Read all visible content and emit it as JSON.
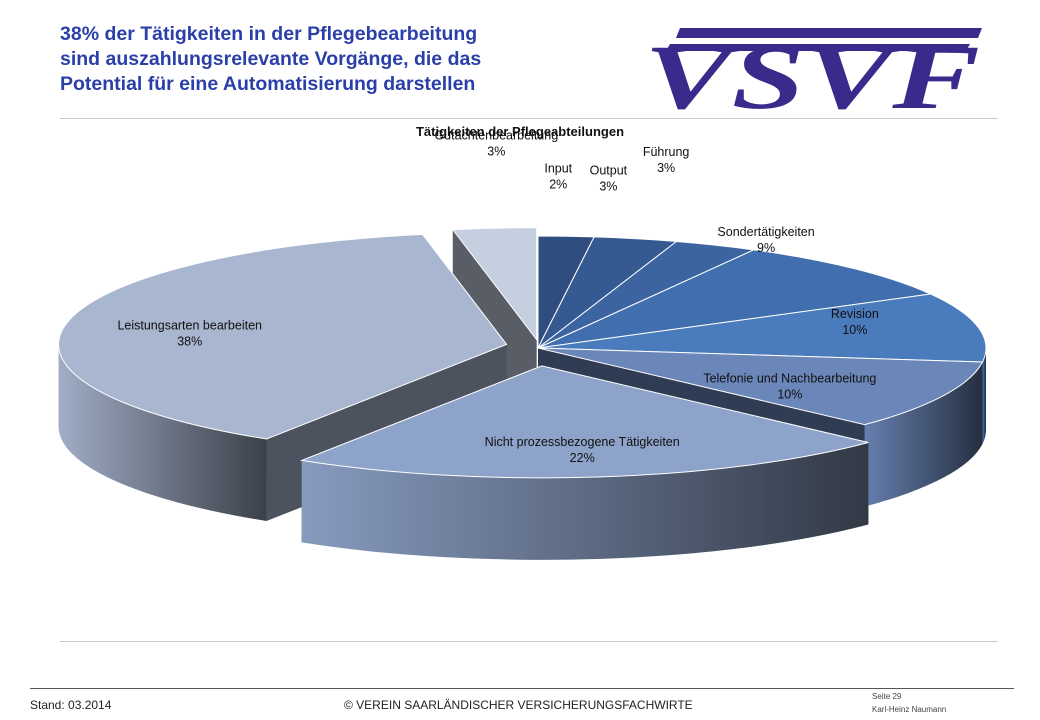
{
  "header": {
    "title_lines": [
      "38% der Tätigkeiten in der Pflegebearbeitung",
      "sind auszahlungsrelevante Vorgänge, die das",
      "Potential für eine Automatisierung darstellen"
    ],
    "logo_text": "VSVF"
  },
  "chart_data": {
    "type": "pie",
    "title": "Tätigkeiten der Pflegeabteilungen",
    "style": "3d-exploded",
    "slices": [
      {
        "label": "Input",
        "value": 2,
        "value_label": "2%",
        "color": "#2f4d7e"
      },
      {
        "label": "Output",
        "value": 3,
        "value_label": "3%",
        "color": "#355a91"
      },
      {
        "label": "Führung",
        "value": 3,
        "value_label": "3%",
        "color": "#3c64a1"
      },
      {
        "label": "Sondertätigkeiten",
        "value": 9,
        "value_label": "9%",
        "color": "#416eae"
      },
      {
        "label": "Revision",
        "value": 10,
        "value_label": "10%",
        "color": "#4a7bbd"
      },
      {
        "label": "Telefonie und Nachbearbeitung",
        "value": 10,
        "value_label": "10%",
        "color": "#6b86b8"
      },
      {
        "label": "Nicht prozessbezogene Tätigkeiten",
        "value": 22,
        "value_label": "22%",
        "color": "#8ea3c9"
      },
      {
        "label": "Leistungsarten bearbeiten",
        "value": 38,
        "value_label": "38%",
        "color": "#a8b6d0"
      },
      {
        "label": "Gutachtenbearbeitung",
        "value": 3,
        "value_label": "3%",
        "color": "#c5cfe0"
      }
    ]
  },
  "footer": {
    "stand": "Stand: 03.2014",
    "copyright": "© VEREIN SAARLÄNDISCHER VERSICHERUNGSFACHWIRTE",
    "page": "Seite 29",
    "author": "Karl-Heinz Naumann"
  }
}
